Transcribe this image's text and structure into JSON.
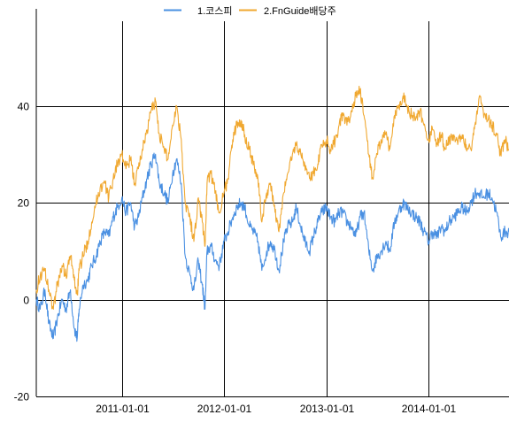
{
  "chart_data": {
    "type": "line",
    "title": "",
    "xlabel": "",
    "ylabel": "",
    "xlim": [
      "2010-03-01",
      "2014-10-15"
    ],
    "ylim": [
      -20,
      60
    ],
    "grid": true,
    "legend_position": "top-center",
    "x_ticks": [
      "2011-01-01",
      "2012-01-01",
      "2013-01-01",
      "2014-01-01"
    ],
    "y_ticks": [
      -20,
      0,
      20,
      40
    ],
    "series": [
      {
        "name": "1.코스피",
        "color": "#4a90e2",
        "points": [
          [
            "2010-03-01",
            0
          ],
          [
            "2010-03-15",
            -2
          ],
          [
            "2010-04-01",
            2
          ],
          [
            "2010-04-15",
            -5
          ],
          [
            "2010-05-01",
            -8
          ],
          [
            "2010-05-15",
            -4
          ],
          [
            "2010-06-01",
            0
          ],
          [
            "2010-06-15",
            -2
          ],
          [
            "2010-07-01",
            2
          ],
          [
            "2010-07-15",
            -6
          ],
          [
            "2010-07-25",
            -8
          ],
          [
            "2010-08-01",
            -2
          ],
          [
            "2010-08-15",
            3
          ],
          [
            "2010-09-01",
            4
          ],
          [
            "2010-09-15",
            7
          ],
          [
            "2010-10-01",
            9
          ],
          [
            "2010-10-15",
            12
          ],
          [
            "2010-11-01",
            14
          ],
          [
            "2010-11-15",
            13
          ],
          [
            "2010-12-01",
            17
          ],
          [
            "2010-12-15",
            19
          ],
          [
            "2011-01-01",
            21
          ],
          [
            "2011-01-15",
            18
          ],
          [
            "2011-02-01",
            20
          ],
          [
            "2011-02-15",
            15
          ],
          [
            "2011-03-01",
            17
          ],
          [
            "2011-03-15",
            21
          ],
          [
            "2011-04-01",
            25
          ],
          [
            "2011-04-15",
            28
          ],
          [
            "2011-05-01",
            30
          ],
          [
            "2011-05-15",
            24
          ],
          [
            "2011-06-01",
            22
          ],
          [
            "2011-06-15",
            20
          ],
          [
            "2011-07-01",
            26
          ],
          [
            "2011-07-15",
            29
          ],
          [
            "2011-08-01",
            24
          ],
          [
            "2011-08-15",
            9
          ],
          [
            "2011-09-01",
            5
          ],
          [
            "2011-09-15",
            2
          ],
          [
            "2011-10-01",
            8
          ],
          [
            "2011-10-15",
            3
          ],
          [
            "2011-10-25",
            -2
          ],
          [
            "2011-11-01",
            10
          ],
          [
            "2011-11-15",
            11
          ],
          [
            "2011-12-01",
            8
          ],
          [
            "2011-12-15",
            7
          ],
          [
            "2012-01-01",
            12
          ],
          [
            "2012-01-15",
            14
          ],
          [
            "2012-02-01",
            17
          ],
          [
            "2012-02-15",
            19
          ],
          [
            "2012-03-01",
            20
          ],
          [
            "2012-03-15",
            19
          ],
          [
            "2012-04-01",
            15
          ],
          [
            "2012-04-15",
            14
          ],
          [
            "2012-05-01",
            12
          ],
          [
            "2012-05-15",
            6
          ],
          [
            "2012-06-01",
            10
          ],
          [
            "2012-06-15",
            12
          ],
          [
            "2012-07-01",
            10
          ],
          [
            "2012-07-15",
            6
          ],
          [
            "2012-08-01",
            12
          ],
          [
            "2012-08-15",
            15
          ],
          [
            "2012-09-01",
            16
          ],
          [
            "2012-09-15",
            19
          ],
          [
            "2012-10-01",
            15
          ],
          [
            "2012-10-15",
            12
          ],
          [
            "2012-11-01",
            10
          ],
          [
            "2012-11-15",
            13
          ],
          [
            "2012-12-01",
            16
          ],
          [
            "2012-12-15",
            18
          ],
          [
            "2013-01-01",
            19
          ],
          [
            "2013-01-15",
            17
          ],
          [
            "2013-02-01",
            16
          ],
          [
            "2013-02-15",
            18
          ],
          [
            "2013-03-01",
            18
          ],
          [
            "2013-03-15",
            16
          ],
          [
            "2013-04-01",
            15
          ],
          [
            "2013-04-15",
            13
          ],
          [
            "2013-05-01",
            17
          ],
          [
            "2013-05-15",
            18
          ],
          [
            "2013-06-01",
            10
          ],
          [
            "2013-06-15",
            6
          ],
          [
            "2013-07-01",
            9
          ],
          [
            "2013-07-15",
            10
          ],
          [
            "2013-08-01",
            12
          ],
          [
            "2013-08-15",
            10
          ],
          [
            "2013-09-01",
            16
          ],
          [
            "2013-09-15",
            18
          ],
          [
            "2013-10-01",
            20
          ],
          [
            "2013-10-15",
            19
          ],
          [
            "2013-11-01",
            18
          ],
          [
            "2013-11-15",
            17
          ],
          [
            "2013-12-01",
            16
          ],
          [
            "2013-12-15",
            14
          ],
          [
            "2014-01-01",
            12
          ],
          [
            "2014-01-15",
            14
          ],
          [
            "2014-02-01",
            13
          ],
          [
            "2014-02-15",
            15
          ],
          [
            "2014-03-01",
            14
          ],
          [
            "2014-03-15",
            16
          ],
          [
            "2014-04-01",
            17
          ],
          [
            "2014-04-15",
            18
          ],
          [
            "2014-05-01",
            19
          ],
          [
            "2014-05-15",
            18
          ],
          [
            "2014-06-01",
            20
          ],
          [
            "2014-06-15",
            22
          ],
          [
            "2014-07-01",
            22
          ],
          [
            "2014-07-15",
            21
          ],
          [
            "2014-08-01",
            22
          ],
          [
            "2014-08-15",
            21
          ],
          [
            "2014-09-01",
            18
          ],
          [
            "2014-09-15",
            13
          ],
          [
            "2014-10-01",
            14
          ],
          [
            "2014-10-15",
            14
          ]
        ]
      },
      {
        "name": "2.FnGuide배당주",
        "color": "#f0a830",
        "points": [
          [
            "2010-03-01",
            2
          ],
          [
            "2010-03-15",
            5
          ],
          [
            "2010-04-01",
            6
          ],
          [
            "2010-04-15",
            2
          ],
          [
            "2010-05-01",
            -2
          ],
          [
            "2010-05-15",
            3
          ],
          [
            "2010-06-01",
            7
          ],
          [
            "2010-06-15",
            5
          ],
          [
            "2010-07-01",
            9
          ],
          [
            "2010-07-15",
            4
          ],
          [
            "2010-07-25",
            1
          ],
          [
            "2010-08-01",
            6
          ],
          [
            "2010-08-15",
            9
          ],
          [
            "2010-09-01",
            12
          ],
          [
            "2010-09-15",
            16
          ],
          [
            "2010-10-01",
            20
          ],
          [
            "2010-10-15",
            23
          ],
          [
            "2010-11-01",
            24
          ],
          [
            "2010-11-15",
            21
          ],
          [
            "2010-12-01",
            25
          ],
          [
            "2010-12-15",
            28
          ],
          [
            "2011-01-01",
            30
          ],
          [
            "2011-01-15",
            27
          ],
          [
            "2011-02-01",
            29
          ],
          [
            "2011-02-15",
            24
          ],
          [
            "2011-03-01",
            27
          ],
          [
            "2011-03-15",
            31
          ],
          [
            "2011-04-01",
            35
          ],
          [
            "2011-04-15",
            39
          ],
          [
            "2011-05-01",
            41
          ],
          [
            "2011-05-15",
            34
          ],
          [
            "2011-06-01",
            31
          ],
          [
            "2011-06-15",
            29
          ],
          [
            "2011-07-01",
            36
          ],
          [
            "2011-07-15",
            40
          ],
          [
            "2011-08-01",
            33
          ],
          [
            "2011-08-15",
            20
          ],
          [
            "2011-09-01",
            17
          ],
          [
            "2011-09-15",
            12
          ],
          [
            "2011-10-01",
            21
          ],
          [
            "2011-10-15",
            16
          ],
          [
            "2011-10-25",
            11
          ],
          [
            "2011-11-01",
            24
          ],
          [
            "2011-11-15",
            26
          ],
          [
            "2011-12-01",
            22
          ],
          [
            "2011-12-15",
            18
          ],
          [
            "2012-01-01",
            22
          ],
          [
            "2012-01-15",
            25
          ],
          [
            "2012-02-01",
            33
          ],
          [
            "2012-02-15",
            36
          ],
          [
            "2012-03-01",
            37
          ],
          [
            "2012-03-15",
            34
          ],
          [
            "2012-04-01",
            31
          ],
          [
            "2012-04-15",
            28
          ],
          [
            "2012-05-01",
            25
          ],
          [
            "2012-05-15",
            16
          ],
          [
            "2012-06-01",
            22
          ],
          [
            "2012-06-15",
            24
          ],
          [
            "2012-07-01",
            18
          ],
          [
            "2012-07-15",
            14
          ],
          [
            "2012-08-01",
            22
          ],
          [
            "2012-08-15",
            26
          ],
          [
            "2012-09-01",
            30
          ],
          [
            "2012-09-15",
            32
          ],
          [
            "2012-10-01",
            30
          ],
          [
            "2012-10-15",
            28
          ],
          [
            "2012-11-01",
            25
          ],
          [
            "2012-11-15",
            26
          ],
          [
            "2012-12-01",
            28
          ],
          [
            "2012-12-15",
            32
          ],
          [
            "2013-01-01",
            33
          ],
          [
            "2013-01-15",
            31
          ],
          [
            "2013-02-01",
            33
          ],
          [
            "2013-02-15",
            36
          ],
          [
            "2013-03-01",
            38
          ],
          [
            "2013-03-15",
            36
          ],
          [
            "2013-04-01",
            39
          ],
          [
            "2013-04-15",
            42
          ],
          [
            "2013-05-01",
            43
          ],
          [
            "2013-05-15",
            38
          ],
          [
            "2013-06-01",
            30
          ],
          [
            "2013-06-15",
            25
          ],
          [
            "2013-07-01",
            30
          ],
          [
            "2013-07-15",
            33
          ],
          [
            "2013-08-01",
            34
          ],
          [
            "2013-08-15",
            31
          ],
          [
            "2013-09-01",
            38
          ],
          [
            "2013-09-15",
            40
          ],
          [
            "2013-10-01",
            42
          ],
          [
            "2013-10-15",
            40
          ],
          [
            "2013-11-01",
            38
          ],
          [
            "2013-11-15",
            37
          ],
          [
            "2013-12-01",
            39
          ],
          [
            "2013-12-15",
            36
          ],
          [
            "2014-01-01",
            33
          ],
          [
            "2014-01-15",
            35
          ],
          [
            "2014-02-01",
            32
          ],
          [
            "2014-02-15",
            34
          ],
          [
            "2014-03-01",
            31
          ],
          [
            "2014-03-15",
            33
          ],
          [
            "2014-04-01",
            34
          ],
          [
            "2014-04-15",
            32
          ],
          [
            "2014-05-01",
            34
          ],
          [
            "2014-05-15",
            32
          ],
          [
            "2014-06-01",
            31
          ],
          [
            "2014-06-15",
            36
          ],
          [
            "2014-07-01",
            42
          ],
          [
            "2014-07-15",
            39
          ],
          [
            "2014-08-01",
            37
          ],
          [
            "2014-08-15",
            36
          ],
          [
            "2014-09-01",
            34
          ],
          [
            "2014-09-15",
            30
          ],
          [
            "2014-10-01",
            33
          ],
          [
            "2014-10-15",
            31
          ]
        ]
      }
    ]
  }
}
